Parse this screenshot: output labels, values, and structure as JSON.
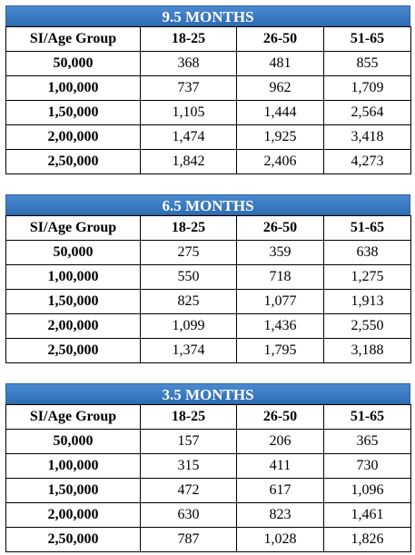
{
  "tables": [
    {
      "title": "9.5 MONTHS",
      "headers": [
        "SI/Age Group",
        "18-25",
        "26-50",
        "51-65"
      ],
      "rows": [
        [
          "50,000",
          "368",
          "481",
          "855"
        ],
        [
          "1,00,000",
          "737",
          "962",
          "1,709"
        ],
        [
          "1,50,000",
          "1,105",
          "1,444",
          "2,564"
        ],
        [
          "2,00,000",
          "1,474",
          "1,925",
          "3,418"
        ],
        [
          "2,50,000",
          "1,842",
          "2,406",
          "4,273"
        ]
      ]
    },
    {
      "title": "6.5 MONTHS",
      "headers": [
        "SI/Age Group",
        "18-25",
        "26-50",
        "51-65"
      ],
      "rows": [
        [
          "50,000",
          "275",
          "359",
          "638"
        ],
        [
          "1,00,000",
          "550",
          "718",
          "1,275"
        ],
        [
          "1,50,000",
          "825",
          "1,077",
          "1,913"
        ],
        [
          "2,00,000",
          "1,099",
          "1,436",
          "2,550"
        ],
        [
          "2,50,000",
          "1,374",
          "1,795",
          "3,188"
        ]
      ]
    },
    {
      "title": "3.5 MONTHS",
      "headers": [
        "SI/Age Group",
        "18-25",
        "26-50",
        "51-65"
      ],
      "rows": [
        [
          "50,000",
          "157",
          "206",
          "365"
        ],
        [
          "1,00,000",
          "315",
          "411",
          "730"
        ],
        [
          "1,50,000",
          "472",
          "617",
          "1,096"
        ],
        [
          "2,00,000",
          "630",
          "823",
          "1,461"
        ],
        [
          "2,50,000",
          "787",
          "1,028",
          "1,826"
        ]
      ]
    }
  ]
}
